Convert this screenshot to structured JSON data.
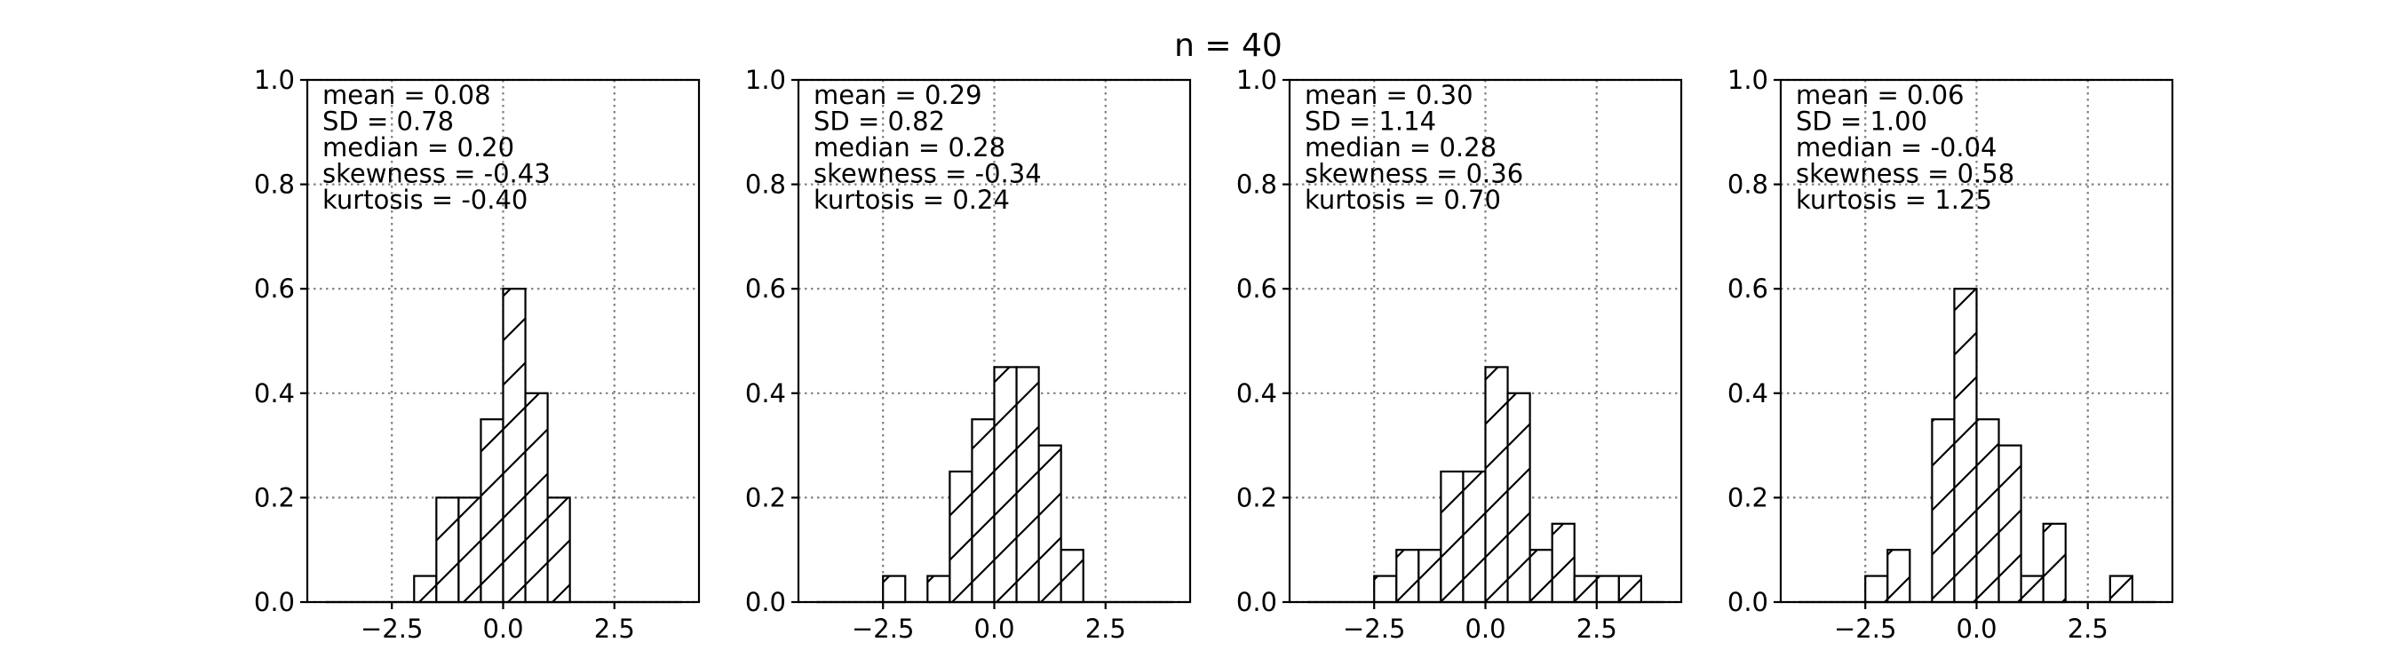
{
  "figure": {
    "suptitle": "n = 40"
  },
  "chart_data": [
    {
      "type": "bar",
      "histogram": true,
      "bin_width": 0.5,
      "bins": [
        {
          "x0": -2.0,
          "height": 0.05
        },
        {
          "x0": -1.5,
          "height": 0.2
        },
        {
          "x0": -1.0,
          "height": 0.2
        },
        {
          "x0": -0.5,
          "height": 0.35
        },
        {
          "x0": 0.0,
          "height": 0.6
        },
        {
          "x0": 0.5,
          "height": 0.4
        },
        {
          "x0": 1.0,
          "height": 0.2
        }
      ],
      "stats": [
        "mean = 0.08",
        "SD = 0.78",
        "median = 0.20",
        "skewness = -0.43",
        "kurtosis = -0.40"
      ],
      "xlim": [
        -4.4,
        4.4
      ],
      "ylim": [
        0,
        1.0
      ],
      "xticks": [
        -2.5,
        0.0,
        2.5
      ],
      "xtick_labels": [
        "−2.5",
        "0.0",
        "2.5"
      ],
      "yticks": [
        0,
        0.2,
        0.4,
        0.6,
        0.8,
        1.0
      ],
      "ytick_labels": [
        "0.0",
        "0.2",
        "0.4",
        "0.6",
        "0.8",
        "1.0"
      ],
      "baseline": [
        -4.0,
        4.0
      ],
      "grid": true,
      "hatch": "/"
    },
    {
      "type": "bar",
      "histogram": true,
      "bin_width": 0.5,
      "bins": [
        {
          "x0": -2.5,
          "height": 0.05
        },
        {
          "x0": -1.5,
          "height": 0.05
        },
        {
          "x0": -1.0,
          "height": 0.25
        },
        {
          "x0": -0.5,
          "height": 0.35
        },
        {
          "x0": 0.0,
          "height": 0.45
        },
        {
          "x0": 0.5,
          "height": 0.45
        },
        {
          "x0": 1.0,
          "height": 0.3
        },
        {
          "x0": 1.5,
          "height": 0.1
        }
      ],
      "stats": [
        "mean = 0.29",
        "SD = 0.82",
        "median = 0.28",
        "skewness = -0.34",
        "kurtosis = 0.24"
      ],
      "xlim": [
        -4.4,
        4.4
      ],
      "ylim": [
        0,
        1.0
      ],
      "xticks": [
        -2.5,
        0.0,
        2.5
      ],
      "xtick_labels": [
        "−2.5",
        "0.0",
        "2.5"
      ],
      "yticks": [
        0,
        0.2,
        0.4,
        0.6,
        0.8,
        1.0
      ],
      "ytick_labels": [
        "0.0",
        "0.2",
        "0.4",
        "0.6",
        "0.8",
        "1.0"
      ],
      "baseline": [
        -4.0,
        4.0
      ],
      "grid": true,
      "hatch": "/"
    },
    {
      "type": "bar",
      "histogram": true,
      "bin_width": 0.5,
      "bins": [
        {
          "x0": -2.5,
          "height": 0.05
        },
        {
          "x0": -2.0,
          "height": 0.1
        },
        {
          "x0": -1.5,
          "height": 0.1
        },
        {
          "x0": -1.0,
          "height": 0.25
        },
        {
          "x0": -0.5,
          "height": 0.25
        },
        {
          "x0": 0.0,
          "height": 0.45
        },
        {
          "x0": 0.5,
          "height": 0.4
        },
        {
          "x0": 1.0,
          "height": 0.1
        },
        {
          "x0": 1.5,
          "height": 0.15
        },
        {
          "x0": 2.0,
          "height": 0.05
        },
        {
          "x0": 2.5,
          "height": 0.05
        },
        {
          "x0": 3.0,
          "height": 0.05
        }
      ],
      "stats": [
        "mean = 0.30",
        "SD = 1.14",
        "median = 0.28",
        "skewness = 0.36",
        "kurtosis = 0.70"
      ],
      "xlim": [
        -4.4,
        4.4
      ],
      "ylim": [
        0,
        1.0
      ],
      "xticks": [
        -2.5,
        0.0,
        2.5
      ],
      "xtick_labels": [
        "−2.5",
        "0.0",
        "2.5"
      ],
      "yticks": [
        0,
        0.2,
        0.4,
        0.6,
        0.8,
        1.0
      ],
      "ytick_labels": [
        "0.0",
        "0.2",
        "0.4",
        "0.6",
        "0.8",
        "1.0"
      ],
      "baseline": [
        -4.0,
        4.0
      ],
      "grid": true,
      "hatch": "/"
    },
    {
      "type": "bar",
      "histogram": true,
      "bin_width": 0.5,
      "bins": [
        {
          "x0": -2.5,
          "height": 0.05
        },
        {
          "x0": -2.0,
          "height": 0.1
        },
        {
          "x0": -1.0,
          "height": 0.35
        },
        {
          "x0": -0.5,
          "height": 0.6
        },
        {
          "x0": 0.0,
          "height": 0.35
        },
        {
          "x0": 0.5,
          "height": 0.3
        },
        {
          "x0": 1.0,
          "height": 0.05
        },
        {
          "x0": 1.5,
          "height": 0.15
        },
        {
          "x0": 3.0,
          "height": 0.05
        }
      ],
      "stats": [
        "mean = 0.06",
        "SD = 1.00",
        "median = -0.04",
        "skewness = 0.58",
        "kurtosis = 1.25"
      ],
      "xlim": [
        -4.4,
        4.4
      ],
      "ylim": [
        0,
        1.0
      ],
      "xticks": [
        -2.5,
        0.0,
        2.5
      ],
      "xtick_labels": [
        "−2.5",
        "0.0",
        "2.5"
      ],
      "yticks": [
        0,
        0.2,
        0.4,
        0.6,
        0.8,
        1.0
      ],
      "ytick_labels": [
        "0.0",
        "0.2",
        "0.4",
        "0.6",
        "0.8",
        "1.0"
      ],
      "baseline": [
        -4.0,
        4.0
      ],
      "grid": true,
      "hatch": "/"
    }
  ]
}
